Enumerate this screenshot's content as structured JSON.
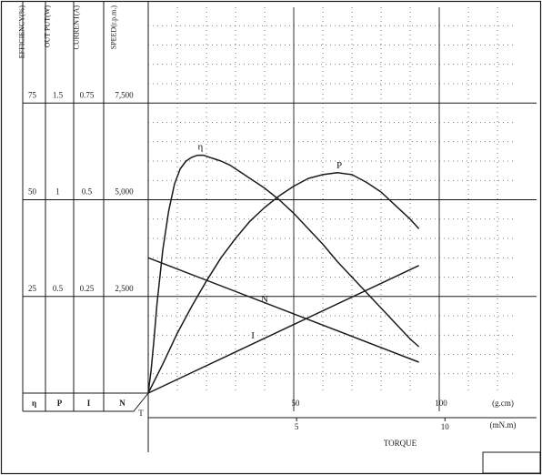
{
  "chart_data": {
    "type": "line",
    "columns": [
      {
        "key": "efficiency",
        "header": "EFFICIENCY(%)",
        "symbol": "η",
        "ticks": [
          "75",
          "50",
          "25"
        ]
      },
      {
        "key": "output",
        "header": "OUT PUT(W)",
        "symbol": "P",
        "ticks": [
          "1.5",
          "1",
          "0.5"
        ]
      },
      {
        "key": "current",
        "header": "CURRENT(A)",
        "symbol": "I",
        "ticks": [
          "0.75",
          "0.5",
          "0.25"
        ]
      },
      {
        "key": "speed",
        "header": "SPEED(r.p.m.)",
        "symbol": "N",
        "ticks": [
          "7,500",
          "5,000",
          "2,500"
        ]
      }
    ],
    "tick_fractions": [
      0.75,
      0.5,
      0.25
    ],
    "x_axes": [
      {
        "unit": "(g.cm)",
        "ticks": [
          "50",
          "100"
        ],
        "tick_values": [
          50,
          100
        ],
        "range": [
          0,
          125
        ]
      },
      {
        "unit": "(mN.m)",
        "ticks": [
          "5",
          "10"
        ],
        "tick_values": [
          5,
          10
        ],
        "range": [
          0,
          12.25
        ]
      }
    ],
    "xlabel": "TORQUE",
    "origin_label": "T",
    "series": [
      {
        "name": "η",
        "axis": "efficiency",
        "color": "#1a1a1a",
        "x": [
          0,
          1,
          2,
          3,
          5,
          7,
          9,
          11,
          13,
          15,
          17,
          19,
          21,
          23,
          25,
          28,
          31,
          35,
          40,
          45,
          50,
          55,
          60,
          65,
          70,
          75,
          80,
          85,
          90,
          93
        ],
        "y": [
          0,
          6,
          14,
          23,
          37,
          47,
          54,
          58,
          60,
          61,
          61.5,
          61.5,
          61,
          60.5,
          60,
          59,
          57.5,
          55.5,
          53,
          50,
          46.5,
          42.5,
          38.5,
          34,
          30,
          26,
          22,
          18,
          14,
          12
        ]
      },
      {
        "name": "P",
        "axis": "output",
        "color": "#1a1a1a",
        "x": [
          0,
          5,
          10,
          15,
          20,
          25,
          30,
          35,
          40,
          45,
          50,
          55,
          60,
          65,
          70,
          75,
          80,
          85,
          90,
          93
        ],
        "y": [
          0,
          0.15,
          0.31,
          0.45,
          0.58,
          0.7,
          0.8,
          0.89,
          0.96,
          1.02,
          1.07,
          1.11,
          1.13,
          1.14,
          1.13,
          1.09,
          1.04,
          0.97,
          0.9,
          0.85
        ]
      },
      {
        "name": "N",
        "axis": "speed",
        "color": "#1a1a1a",
        "x": [
          0,
          93
        ],
        "y": [
          3500,
          800
        ]
      },
      {
        "name": "I",
        "axis": "current",
        "color": "#1a1a1a",
        "x": [
          0,
          93
        ],
        "y": [
          0,
          0.33
        ]
      }
    ],
    "grid": true
  }
}
